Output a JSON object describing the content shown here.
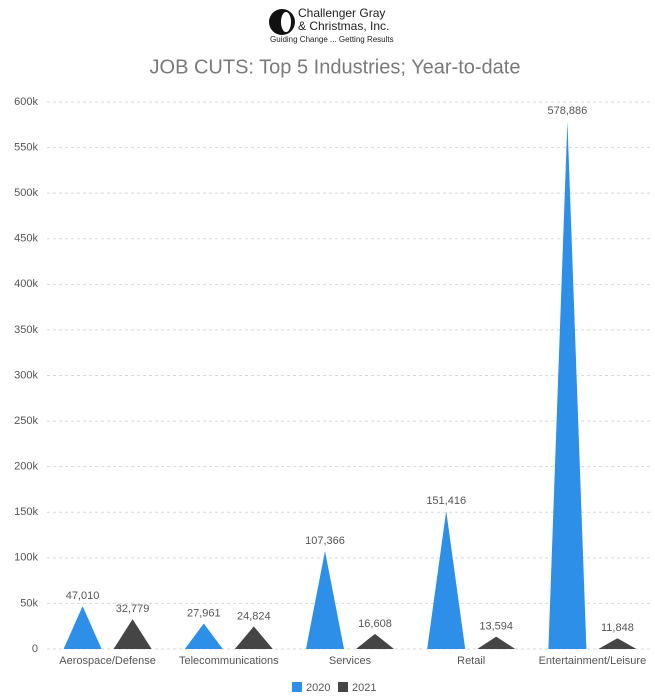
{
  "header": {
    "company_line1": "Challenger Gray",
    "company_line2": "& Christmas, Inc.",
    "tagline": "Guiding Change ... Getting Results"
  },
  "chart_data": {
    "type": "spike",
    "title": "JOB CUTS: Top 5 Industries; Year-to-date",
    "categories": [
      "Aerospace/Defense",
      "Telecommunications",
      "Services",
      "Retail",
      "Entertainment/Leisure"
    ],
    "series": [
      {
        "name": "2020",
        "color": "#2d8fe8",
        "values": [
          47010,
          27961,
          107366,
          151416,
          578886
        ],
        "value_labels": [
          "47,010",
          "27,961",
          "107,366",
          "151,416",
          "578,886"
        ]
      },
      {
        "name": "2021",
        "color": "#454545",
        "values": [
          32779,
          24824,
          16608,
          13594,
          11848
        ],
        "value_labels": [
          "32,779",
          "24,824",
          "16,608",
          "13,594",
          "11,848"
        ]
      }
    ],
    "ylim": [
      0,
      600000
    ],
    "yticks": [
      0,
      {
        "value": 50000,
        "label": "50k"
      },
      {
        "value": 100000,
        "label": "100k"
      },
      {
        "value": 150000,
        "label": "150k"
      },
      {
        "value": 200000,
        "label": "200k"
      },
      {
        "value": 250000,
        "label": "250k"
      },
      {
        "value": 300000,
        "label": "300k"
      },
      {
        "value": 350000,
        "label": "350k"
      },
      {
        "value": 400000,
        "label": "400k"
      },
      {
        "value": 450000,
        "label": "450k"
      },
      {
        "value": 500000,
        "label": "500k"
      },
      {
        "value": 550000,
        "label": "550k"
      },
      {
        "value": 600000,
        "label": "600k"
      }
    ],
    "grid": true,
    "legend": "bottom"
  }
}
